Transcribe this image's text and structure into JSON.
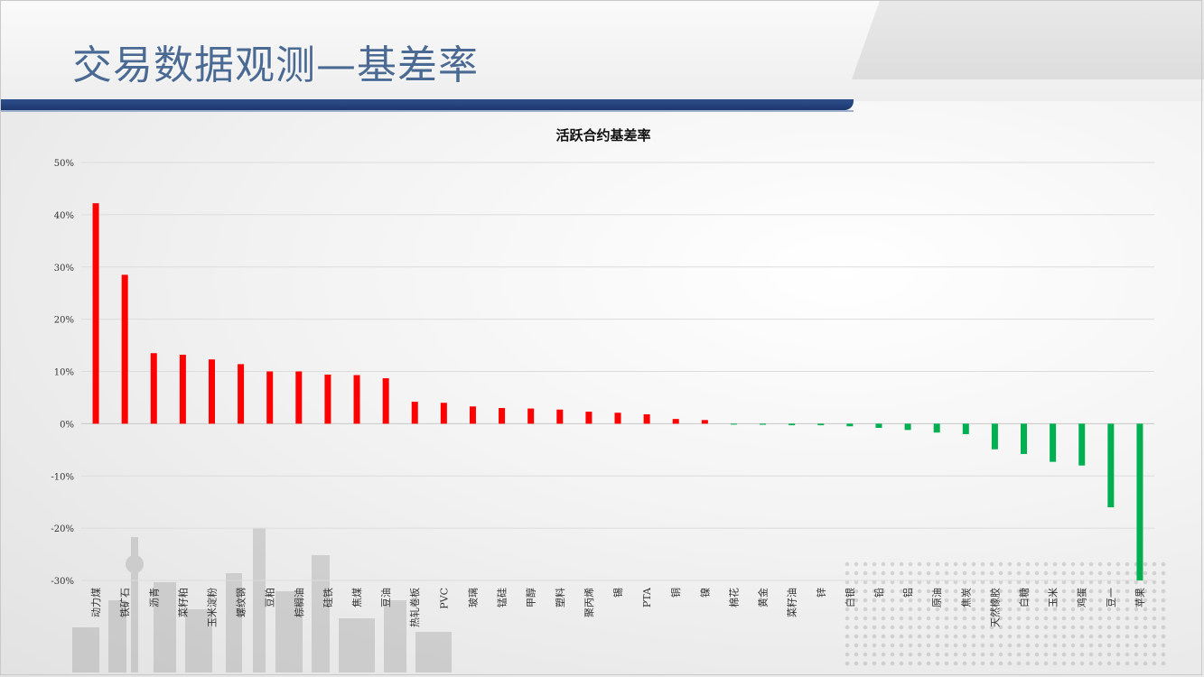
{
  "slide": {
    "title": "交易数据观测—基差率"
  },
  "chart_data": {
    "type": "bar",
    "title": "活跃合约基差率",
    "xlabel": "",
    "ylabel": "",
    "ylim": [
      -30,
      50
    ],
    "yticks": [
      50,
      40,
      30,
      20,
      10,
      0,
      -10,
      -20,
      -30
    ],
    "ytick_labels": [
      "50%",
      "40%",
      "30%",
      "20%",
      "10%",
      "0%",
      "-10%",
      "-20%",
      "-30%"
    ],
    "grid": true,
    "legend": "none",
    "positive_color": "#ff0000",
    "negative_color": "#00b050",
    "categories": [
      "动力煤",
      "铁矿石",
      "沥青",
      "菜籽粕",
      "玉米淀粉",
      "螺纹钢",
      "豆粕",
      "棕榈油",
      "硅铁",
      "焦煤",
      "豆油",
      "热轧卷板",
      "PVC",
      "玻璃",
      "锰硅",
      "甲醇",
      "塑料",
      "聚丙烯",
      "锡",
      "PTA",
      "铜",
      "镍",
      "棉花",
      "黄金",
      "菜籽油",
      "锌",
      "白银",
      "铅",
      "铝",
      "原油",
      "焦炭",
      "天然橡胶",
      "白糖",
      "玉米",
      "鸡蛋",
      "豆一",
      "苹果"
    ],
    "values": [
      42.2,
      28.5,
      13.5,
      13.2,
      12.3,
      11.4,
      10.0,
      10.0,
      9.4,
      9.3,
      8.7,
      4.2,
      4.0,
      3.3,
      3.0,
      2.9,
      2.7,
      2.3,
      2.1,
      1.8,
      0.9,
      0.7,
      -0.1,
      -0.2,
      -0.3,
      -0.3,
      -0.5,
      -0.8,
      -1.2,
      -1.7,
      -2.0,
      -4.9,
      -5.8,
      -7.3,
      -8.0,
      -16.0,
      -30.0
    ]
  }
}
